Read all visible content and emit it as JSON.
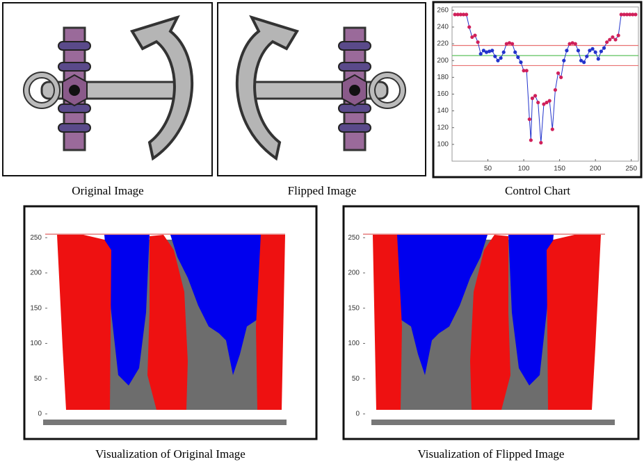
{
  "images": [
    {
      "caption": "Original Image"
    },
    {
      "caption": "Flipped Image"
    }
  ],
  "chart_data": [
    {
      "type": "line",
      "caption": "Control Chart",
      "x": [
        4,
        8,
        12,
        16,
        20,
        24,
        28,
        32,
        36,
        40,
        44,
        48,
        52,
        56,
        60,
        64,
        68,
        72,
        76,
        80,
        84,
        88,
        92,
        96,
        100,
        104,
        108,
        110,
        112,
        116,
        120,
        124,
        128,
        132,
        136,
        140,
        144,
        148,
        152,
        156,
        160,
        164,
        168,
        172,
        176,
        180,
        184,
        188,
        192,
        196,
        200,
        204,
        208,
        212,
        216,
        220,
        224,
        228,
        232,
        236,
        240,
        244,
        248,
        252,
        256
      ],
      "series": [
        {
          "color": "#2233cc",
          "values": [
            255,
            255,
            255,
            255,
            255,
            240,
            228,
            230,
            222,
            208,
            212,
            210,
            211,
            212,
            205,
            200,
            203,
            210,
            220,
            221,
            220,
            210,
            204,
            198,
            188,
            188,
            130,
            105,
            155,
            158,
            150,
            102,
            148,
            150,
            152,
            118,
            165,
            185,
            180,
            200,
            212,
            220,
            221,
            220,
            212,
            200,
            198,
            205,
            212,
            214,
            210,
            202,
            211,
            215,
            222,
            225,
            228,
            225,
            230,
            255,
            255,
            255,
            255,
            255,
            255
          ]
        }
      ],
      "outlier_color": "#d0205a",
      "lines": [
        {
          "value": 218,
          "color": "#e87070"
        },
        {
          "value": 206,
          "color": "#5cc05c"
        },
        {
          "value": 194,
          "color": "#e87070"
        }
      ],
      "xlim": [
        0,
        260
      ],
      "ylim": [
        80,
        264
      ],
      "xticks": [
        50,
        100,
        150,
        200,
        250
      ],
      "yticks": [
        100,
        120,
        140,
        160,
        180,
        200,
        220,
        240,
        260
      ]
    },
    {
      "type": "scatter",
      "caption": "Visualization of Original Image",
      "ylim": [
        -7,
        262
      ],
      "yticks": [
        0,
        50,
        100,
        150,
        200,
        250
      ],
      "lines": [
        {
          "value": 255,
          "color": "#e06060"
        }
      ]
    },
    {
      "type": "scatter",
      "caption": "Visualization of Flipped Image",
      "ylim": [
        -7,
        262
      ],
      "yticks": [
        0,
        50,
        100,
        150,
        200,
        250
      ],
      "lines": [
        {
          "value": 255,
          "color": "#e06060"
        }
      ]
    }
  ]
}
